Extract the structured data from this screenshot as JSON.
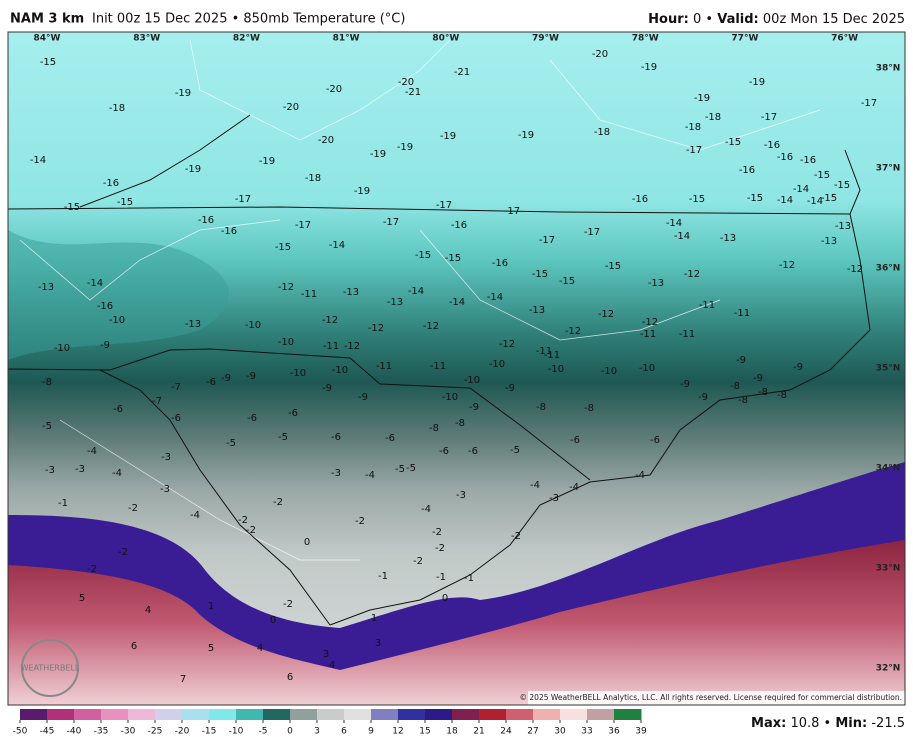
{
  "header": {
    "title": "NAM 3 km",
    "init": "Init 00z 15 Dec 2025 • 850mb Temperature (°C)",
    "hour_label": "Hour:",
    "hour": 0,
    "separator": "•",
    "valid_label": "Valid:",
    "valid": "00z Mon 15 Dec 2025"
  },
  "map": {
    "longitudes": [
      "84°W",
      "83°W",
      "82°W",
      "81°W",
      "80°W",
      "79°W",
      "78°W",
      "77°W",
      "76°W"
    ],
    "latitudes": [
      "38°N",
      "37°N",
      "36°N",
      "35°N",
      "34°N",
      "33°N",
      "32°N"
    ],
    "temperature_labels": [
      -15,
      -18,
      -19,
      -14,
      -16,
      -15,
      -15,
      -19,
      -20,
      -20,
      -20,
      -21,
      -21,
      -20,
      -19,
      -19,
      -19,
      -17,
      -19,
      -20,
      -18,
      -19,
      -19,
      -19,
      -19,
      -19,
      -18,
      -18,
      -18,
      -17,
      -17,
      -15,
      -16,
      -16,
      -16,
      -16,
      -15,
      -14,
      -15,
      -15,
      -14,
      -14,
      -15,
      -17,
      -16,
      -16,
      -17,
      -15,
      -14,
      -17,
      -17,
      -16,
      -17,
      -17,
      -17,
      -16,
      -15,
      -14,
      -14,
      -13,
      -13,
      -13,
      -12,
      -12,
      -15,
      -15,
      -16,
      -15,
      -15,
      -15,
      -13,
      -12,
      -13,
      -14,
      -16,
      -10,
      -10,
      -9,
      -13,
      -12,
      -11,
      -13,
      -13,
      -14,
      -14,
      -14,
      -13,
      -12,
      -12,
      -11,
      -11,
      -11,
      -10,
      -12,
      -12,
      -12,
      -10,
      -11,
      -12,
      -12,
      -11,
      -12,
      -11,
      -11,
      -10,
      -11,
      -11,
      -10,
      -8,
      -7,
      -6,
      -9,
      -9,
      -10,
      -9,
      -9,
      -10,
      -9,
      -10,
      -10,
      -10,
      -9,
      -9,
      -9,
      -8,
      -9,
      -9,
      -8,
      -8,
      -8,
      -7,
      -6,
      -6,
      -10,
      -9,
      -8,
      -8,
      -6,
      -6,
      -8,
      -8,
      -6,
      -6,
      -6,
      -6,
      -5,
      -5,
      -6,
      -5,
      -5,
      -4,
      -3,
      -3,
      -4,
      -3,
      -3,
      -4,
      -5,
      -5,
      -6,
      -4,
      -4,
      -3,
      -4,
      -3,
      -1,
      -2,
      -4,
      -2,
      -2,
      -2,
      -4,
      -3,
      -2,
      -2,
      -2,
      0,
      -2,
      -2,
      -2,
      -1,
      -1,
      -1,
      -2,
      5,
      4,
      1,
      -2,
      0,
      0,
      1,
      6,
      5,
      4,
      3,
      3,
      7,
      6,
      4
    ],
    "logo": "WEATHERBELL",
    "copyright": "© 2025 WeatherBELL Analytics, LLC. All rights reserved. License required for commercial distribution."
  },
  "colorbar": {
    "ticks": [
      -50,
      -45,
      -40,
      -35,
      -30,
      -25,
      -20,
      -15,
      -10,
      -5,
      0,
      3,
      6,
      9,
      12,
      15,
      18,
      21,
      24,
      27,
      30,
      33,
      36,
      39
    ]
  },
  "footer": {
    "max_label": "Max:",
    "max": 10.8,
    "separator": "•",
    "min_label": "Min:",
    "min": -21.5
  }
}
